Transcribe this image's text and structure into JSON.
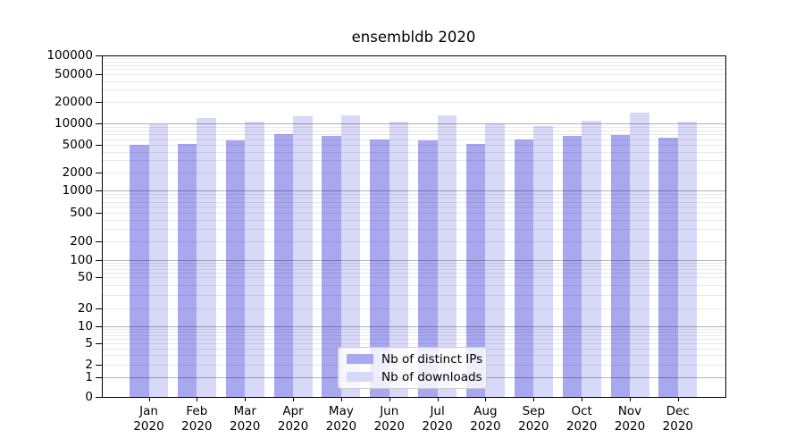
{
  "chart_data": {
    "type": "bar",
    "title": "ensembldb 2020",
    "categories": [
      "Jan",
      "Feb",
      "Mar",
      "Apr",
      "May",
      "Jun",
      "Jul",
      "Aug",
      "Sep",
      "Oct",
      "Nov",
      "Dec"
    ],
    "series": [
      {
        "name": "Nb of distinct IPs",
        "color": "#a8a8ee",
        "values": [
          5000,
          5100,
          5800,
          7000,
          6700,
          5900,
          5800,
          5200,
          6000,
          6600,
          6900,
          6300
        ]
      },
      {
        "name": "Nb of downloads",
        "color": "#d8d8f8",
        "values": [
          9800,
          12000,
          10600,
          12500,
          13000,
          10700,
          13000,
          10000,
          9300,
          11000,
          14300,
          10500
        ]
      }
    ],
    "x_axis": {
      "year": "2020",
      "tick_labels": [
        "Jan 2020",
        "Feb 2020",
        "Mar 2020",
        "Apr 2020",
        "May 2020",
        "Jun 2020",
        "Jul 2020",
        "Aug 2020",
        "Sep 2020",
        "Oct 2020",
        "Nov 2020",
        "Dec 2020"
      ]
    },
    "y_axis": {
      "scale": "symlog",
      "range": [
        0,
        100000
      ],
      "tick_labels": [
        "0",
        "1",
        "2",
        "5",
        "10",
        "20",
        "50",
        "100",
        "200",
        "500",
        "1000",
        "2000",
        "5000",
        "10000",
        "20000",
        "50000",
        "100000"
      ]
    },
    "grid": "on",
    "legend_position": "lower center"
  },
  "legend": {
    "entries": [
      "Nb of distinct IPs",
      "Nb of downloads"
    ]
  },
  "colors": {
    "major_grid": "rgba(0,0,0,0.30)",
    "minor_grid": "rgba(0,0,0,0.085)",
    "spine": "#000000",
    "background": "#ffffff"
  }
}
